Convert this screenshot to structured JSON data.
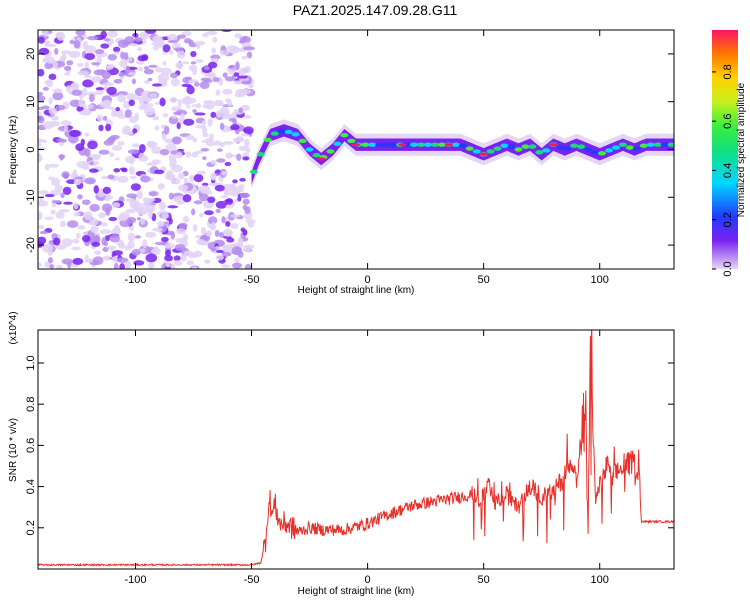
{
  "title": "PAZ1.2025.147.09.28.G11",
  "colors": {
    "line": "#e8302a",
    "axes": "#000000"
  },
  "chart_data": [
    {
      "type": "heatmap",
      "xlabel": "Height of straight line (km)",
      "ylabel": "Frequency (Hz)",
      "xlim": [
        -142,
        132
      ],
      "ylim": [
        -25,
        25
      ],
      "xticks": [
        -100,
        -50,
        0,
        50,
        100
      ],
      "yticks": [
        -20,
        -10,
        0,
        10,
        20
      ],
      "colorbar": {
        "label": "Normalized spectral amplitude",
        "range": [
          0,
          0.97
        ],
        "ticks": [
          "0.0",
          "0.2",
          "0.4",
          "0.6",
          "0.8"
        ],
        "colormap": "rainbow"
      },
      "ridge": {
        "x": [
          -50,
          -47,
          -42,
          -36,
          -30,
          -25,
          -20,
          -15,
          -10,
          -5,
          0,
          5,
          10,
          20,
          30,
          40,
          45,
          50,
          55,
          60,
          65,
          70,
          75,
          80,
          85,
          90,
          95,
          100,
          105,
          110,
          115,
          120,
          125,
          132
        ],
        "y": [
          -6,
          -2,
          3,
          4,
          3,
          0,
          -2,
          0,
          3,
          1,
          1,
          1,
          1,
          1,
          1,
          1,
          0,
          -1,
          0,
          1,
          0,
          1,
          -1,
          1,
          0,
          1,
          0,
          -1,
          0,
          1,
          0,
          1,
          1,
          1
        ]
      }
    },
    {
      "type": "line",
      "xlabel": "Height of straight line (km)",
      "ylabel": "SNR (10 * v/v)",
      "yscale_label": "(x10^4)",
      "xlim": [
        -142,
        132
      ],
      "ylim": [
        0,
        1.16
      ],
      "xticks": [
        -100,
        -50,
        0,
        50,
        100
      ],
      "yticks": [
        "0.2",
        "0.4",
        "0.6",
        "0.8",
        "1.0"
      ],
      "series": [
        {
          "x": [
            -142,
            -50,
            -46,
            -44,
            -43,
            -42,
            -41,
            -40,
            -38,
            -35,
            -30,
            -25,
            -20,
            -10,
            0,
            10,
            20,
            30,
            40,
            45,
            48,
            50,
            52,
            55,
            60,
            65,
            70,
            75,
            80,
            85,
            88,
            90,
            92,
            94,
            95,
            96,
            98,
            100,
            103,
            106,
            110,
            115,
            117,
            118,
            132
          ],
          "y": [
            0.02,
            0.02,
            0.03,
            0.14,
            0.28,
            0.33,
            0.26,
            0.32,
            0.22,
            0.22,
            0.18,
            0.2,
            0.19,
            0.19,
            0.22,
            0.27,
            0.31,
            0.33,
            0.35,
            0.36,
            0.34,
            0.35,
            0.4,
            0.32,
            0.36,
            0.3,
            0.4,
            0.35,
            0.38,
            0.45,
            0.55,
            0.42,
            0.62,
            0.78,
            0.15,
            1.15,
            0.35,
            0.4,
            0.5,
            0.45,
            0.5,
            0.52,
            0.47,
            0.23,
            0.23
          ]
        }
      ]
    }
  ]
}
